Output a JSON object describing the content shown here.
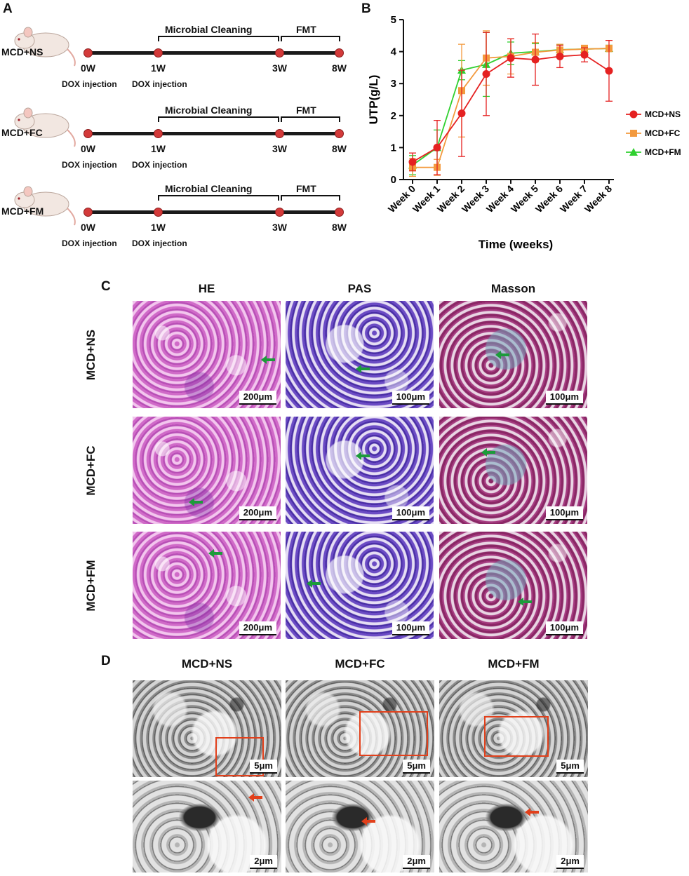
{
  "panels": {
    "a": "A",
    "b": "B",
    "c": "C",
    "d": "D"
  },
  "timeline": {
    "groups": [
      {
        "name": "MCD+NS"
      },
      {
        "name": "MCD+FC"
      },
      {
        "name": "MCD+FM"
      }
    ],
    "ticks": [
      "0W",
      "1W",
      "3W",
      "8W"
    ],
    "injection_label": "DOX injection",
    "phase_1": "Microbial Cleaning",
    "phase_2": "FMT"
  },
  "chart_data": {
    "type": "line",
    "categories": [
      "Week 0",
      "Week 1",
      "Week 2",
      "Week 3",
      "Week 4",
      "Week 5",
      "Week 6",
      "Week 7",
      "Week 8"
    ],
    "ylabel": "UTP(g/L)",
    "xlabel": "Time (weeks)",
    "ylim": [
      0,
      5
    ],
    "yticks": [
      "0",
      "1",
      "2",
      "3",
      "4",
      "5"
    ],
    "legend_position": "right",
    "series": [
      {
        "name": "MCD+NS",
        "color": "#e52121",
        "marker": "circle",
        "values": [
          0.55,
          1.0,
          2.07,
          3.3,
          3.8,
          3.75,
          3.85,
          3.9,
          3.4
        ],
        "err": [
          0.28,
          0.85,
          1.35,
          1.3,
          0.6,
          0.8,
          0.35,
          0.22,
          0.95
        ]
      },
      {
        "name": "MCD+FC",
        "color": "#f39a3e",
        "marker": "square",
        "values": [
          0.38,
          0.38,
          2.78,
          3.8,
          3.85,
          3.98,
          4.05,
          4.08,
          4.1
        ],
        "err": [
          0.28,
          0.25,
          1.45,
          0.85,
          0.55,
          0.3,
          0.18,
          0.12,
          0.1
        ]
      },
      {
        "name": "MCD+FM",
        "color": "#2fd02f",
        "marker": "triangle",
        "values": [
          0.45,
          1.0,
          3.42,
          3.6,
          3.95,
          4.0,
          4.06,
          4.08,
          4.1
        ],
        "err": [
          0.3,
          0.55,
          0.3,
          1.0,
          0.35,
          0.25,
          0.15,
          0.1,
          0.1
        ]
      }
    ]
  },
  "histology": {
    "columns": [
      "HE",
      "PAS",
      "Masson"
    ],
    "rows": [
      "MCD+NS",
      "MCD+FC",
      "MCD+FM"
    ],
    "scales": [
      [
        "200μm",
        "100μm",
        "100μm"
      ],
      [
        "200μm",
        "100μm",
        "100μm"
      ],
      [
        "200μm",
        "100μm",
        "100μm"
      ]
    ]
  },
  "tem": {
    "columns": [
      "MCD+NS",
      "MCD+FC",
      "MCD+FM"
    ],
    "scale_top": "5μm",
    "scale_bottom": "2μm"
  },
  "colors": {
    "accent_green_arrow": "#1c9b3a",
    "accent_red_arrow": "#e2401b"
  }
}
